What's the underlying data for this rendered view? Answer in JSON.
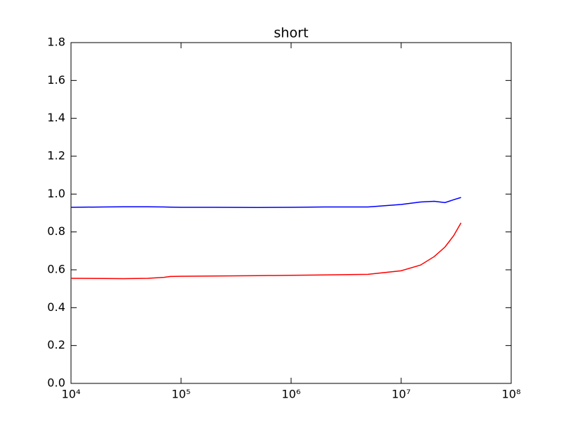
{
  "chart_data": {
    "type": "line",
    "title": "short",
    "xscale": "log",
    "x": [
      10000,
      20000,
      30000,
      50000,
      70000,
      80000,
      100000,
      200000,
      500000,
      1000000,
      2000000,
      5000000,
      10000000,
      15000000,
      20000000,
      25000000,
      30000000,
      35000000
    ],
    "series": [
      {
        "name": "blue",
        "color": "#0000ff",
        "values": [
          0.93,
          0.932,
          0.933,
          0.933,
          0.932,
          0.931,
          0.93,
          0.93,
          0.929,
          0.93,
          0.932,
          0.932,
          0.945,
          0.958,
          0.962,
          0.955,
          0.97,
          0.982
        ]
      },
      {
        "name": "red",
        "color": "#ff0000",
        "values": [
          0.555,
          0.554,
          0.553,
          0.555,
          0.56,
          0.565,
          0.566,
          0.567,
          0.569,
          0.571,
          0.573,
          0.576,
          0.595,
          0.625,
          0.67,
          0.72,
          0.78,
          0.848
        ]
      }
    ],
    "xlim": [
      10000,
      100000000
    ],
    "xticks": [
      {
        "value": 10000,
        "label": "10⁴"
      },
      {
        "value": 100000,
        "label": "10⁵"
      },
      {
        "value": 1000000,
        "label": "10⁶"
      },
      {
        "value": 10000000,
        "label": "10⁷"
      },
      {
        "value": 100000000,
        "label": "10⁸"
      }
    ],
    "ylim": [
      0,
      1.8
    ],
    "yticks": [
      {
        "value": 0,
        "label": "0.0"
      },
      0.2,
      0.4,
      0.6,
      0.8,
      {
        "value": 1,
        "label": "1.0"
      },
      1.2,
      1.4,
      1.6,
      1.8
    ],
    "grid": false
  }
}
